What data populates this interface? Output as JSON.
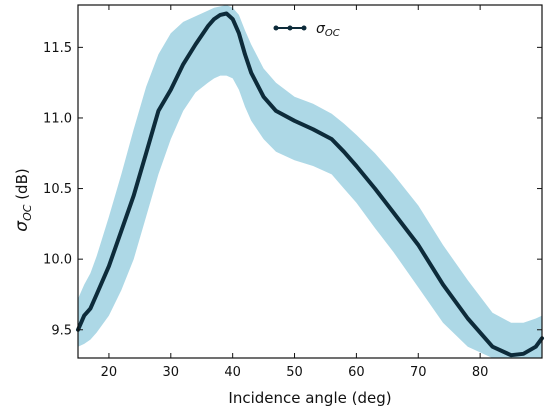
{
  "chart_data": {
    "type": "line",
    "xlabel": "Incidence angle (deg)",
    "ylabel_main": "σ",
    "ylabel_sub": "OC",
    "ylabel_unit": " (dB)",
    "xlim": [
      15,
      90
    ],
    "ylim": [
      9.3,
      11.8
    ],
    "xticks": [
      20,
      30,
      40,
      50,
      60,
      70,
      80
    ],
    "yticks": [
      9.5,
      10.0,
      10.5,
      11.0,
      11.5
    ],
    "ytick_labels": [
      "9.5",
      "10.0",
      "10.5",
      "11.0",
      "11.5"
    ],
    "legend": {
      "position": "top-center",
      "entries": [
        {
          "main": "σ",
          "sub": "OC"
        }
      ]
    },
    "colors": {
      "line": "#0d2b3a",
      "band": "#add8e6"
    },
    "series": [
      {
        "x": [
          15,
          16,
          17,
          18,
          20,
          22,
          24,
          26,
          28,
          30,
          32,
          34,
          36,
          37,
          38,
          39,
          40,
          41,
          42,
          43,
          45,
          47,
          50,
          53,
          56,
          58,
          60,
          63,
          66,
          70,
          74,
          78,
          82,
          85,
          87,
          89,
          90
        ],
        "y": [
          9.5,
          9.6,
          9.65,
          9.75,
          9.95,
          10.2,
          10.45,
          10.75,
          11.05,
          11.2,
          11.38,
          11.52,
          11.65,
          11.7,
          11.73,
          11.74,
          11.7,
          11.6,
          11.45,
          11.32,
          11.15,
          11.05,
          10.98,
          10.92,
          10.85,
          10.76,
          10.66,
          10.5,
          10.33,
          10.1,
          9.82,
          9.58,
          9.38,
          9.32,
          9.33,
          9.38,
          9.44
        ],
        "band_upper": [
          9.72,
          9.82,
          9.9,
          10.02,
          10.3,
          10.6,
          10.92,
          11.22,
          11.45,
          11.6,
          11.68,
          11.72,
          11.76,
          11.78,
          11.79,
          11.8,
          11.78,
          11.73,
          11.62,
          11.52,
          11.35,
          11.25,
          11.15,
          11.1,
          11.03,
          10.96,
          10.88,
          10.75,
          10.6,
          10.38,
          10.1,
          9.85,
          9.62,
          9.55,
          9.55,
          9.58,
          9.6
        ],
        "band_lower": [
          9.38,
          9.4,
          9.43,
          9.48,
          9.6,
          9.78,
          10.0,
          10.3,
          10.6,
          10.85,
          11.05,
          11.18,
          11.25,
          11.28,
          11.3,
          11.3,
          11.28,
          11.2,
          11.08,
          10.98,
          10.85,
          10.76,
          10.7,
          10.66,
          10.6,
          10.5,
          10.4,
          10.22,
          10.05,
          9.8,
          9.55,
          9.38,
          9.3,
          9.3,
          9.3,
          9.3,
          9.3
        ]
      }
    ]
  }
}
